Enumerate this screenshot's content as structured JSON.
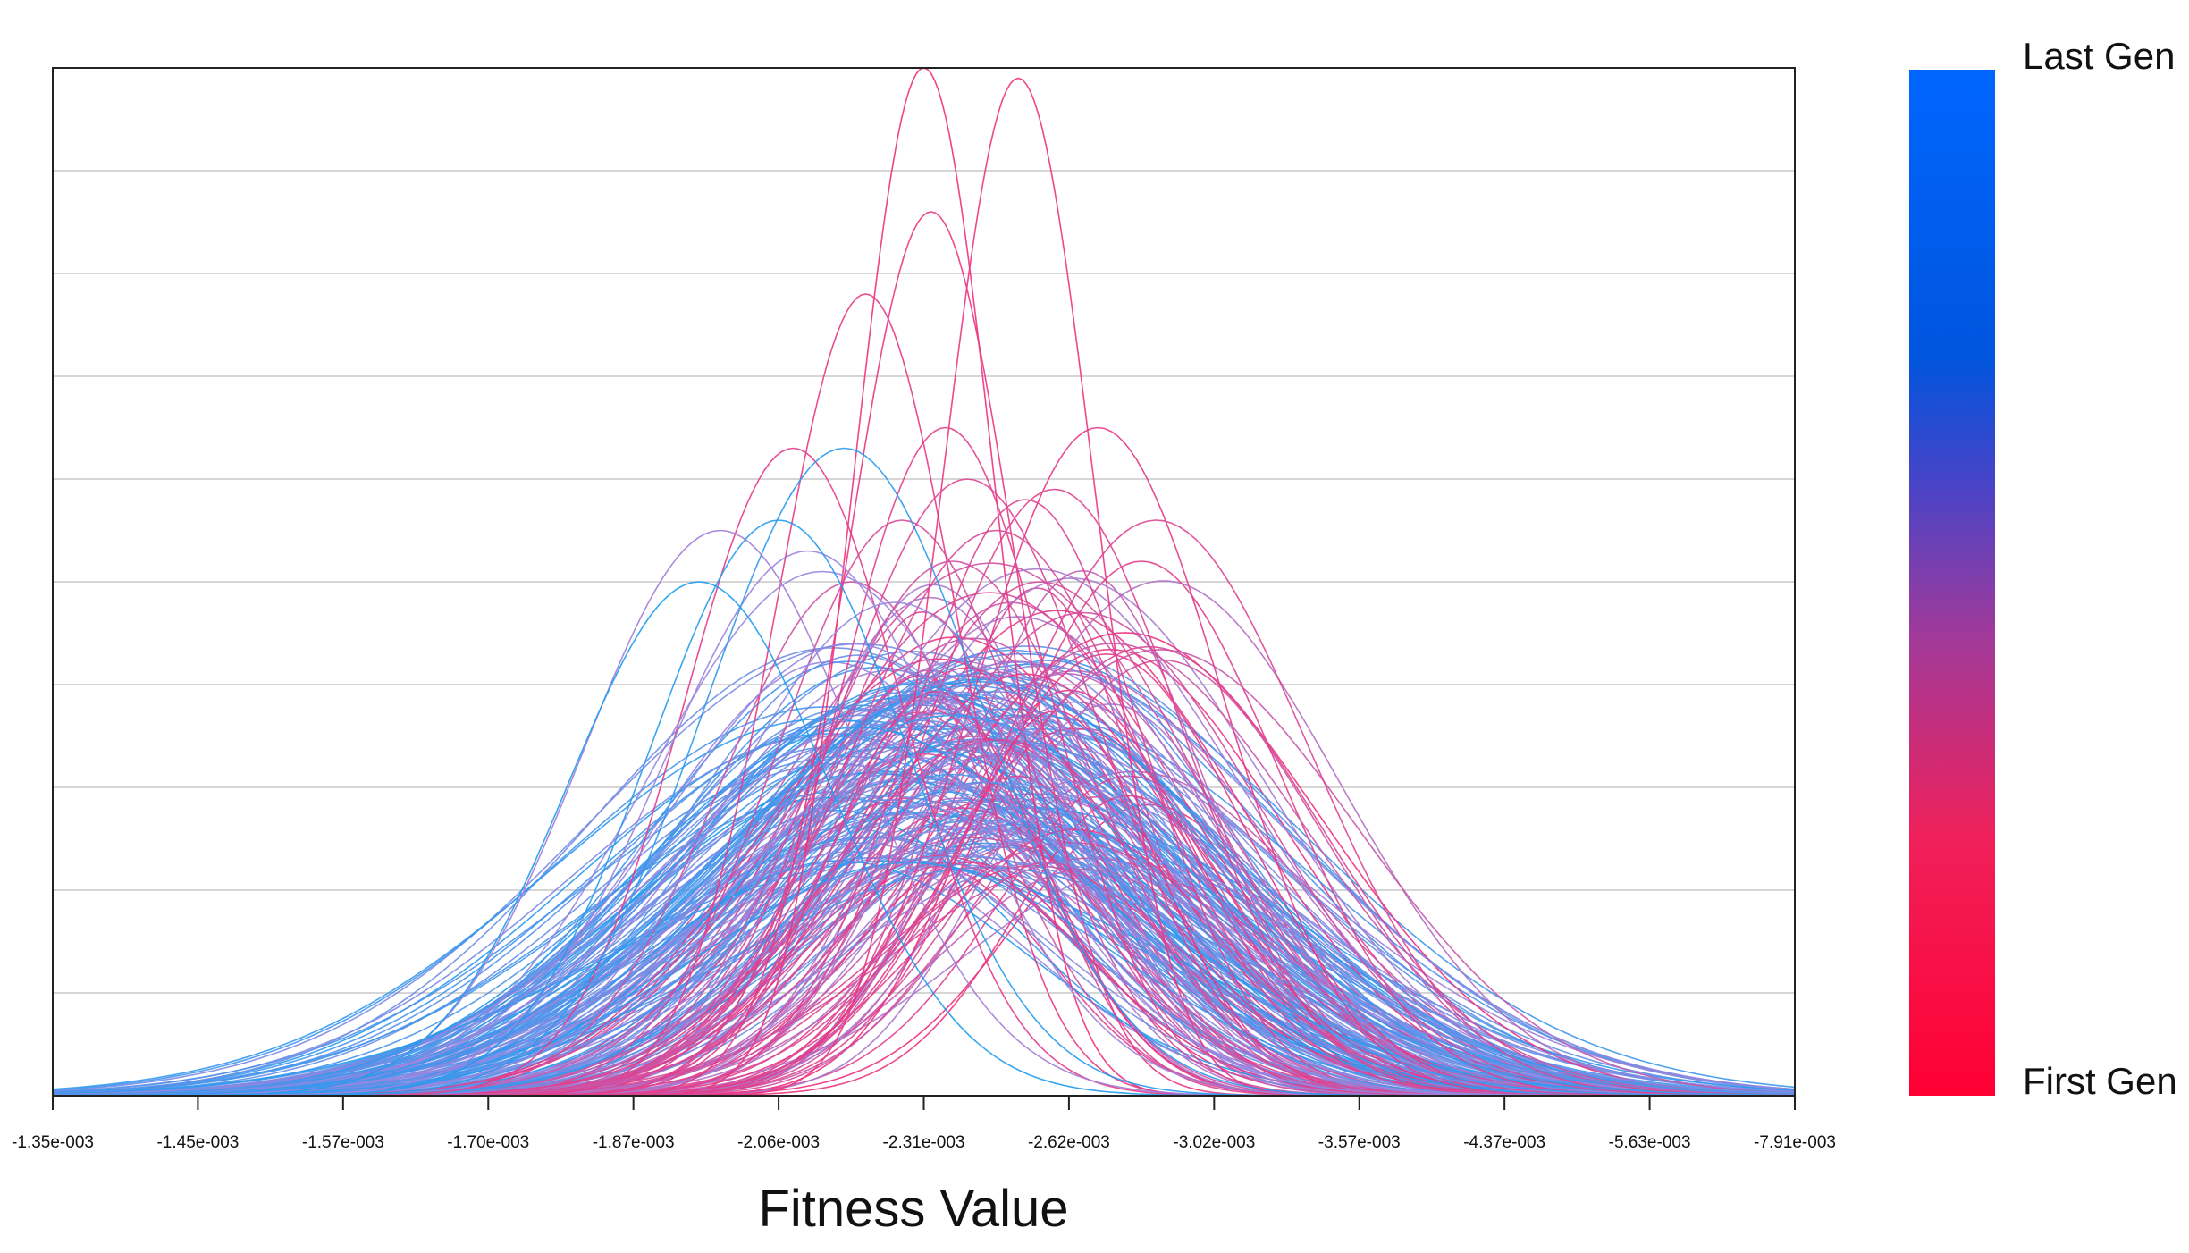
{
  "chart_data": {
    "type": "line",
    "title": "",
    "xlabel": "Fitness Value",
    "ylabel": "",
    "x_tick_labels": [
      "-1.35e-003",
      "-1.45e-003",
      "-1.57e-003",
      "-1.70e-003",
      "-1.87e-003",
      "-2.06e-003",
      "-2.31e-003",
      "-2.62e-003",
      "-3.02e-003",
      "-3.57e-003",
      "-4.37e-003",
      "-5.63e-003",
      "-7.91e-003"
    ],
    "y_gridlines": 10,
    "grid": true,
    "legend": {
      "type": "colorbar",
      "position": "right",
      "top_label": "Last Gen",
      "bottom_label": "First Gen",
      "top_color": "#0066ff",
      "mid_color": "#2d55d0",
      "bottom_color": "#ff0033"
    },
    "line_colors": {
      "first_gen": "#f0307a",
      "mid_gen": "#9a86e0",
      "last_gen": "#1f9cf0"
    },
    "series_summary": "Overlaid bell-shaped fitness distribution curves, one per generation, colored from First Gen (pink) to Last Gen (blue). Early generations are tall and narrow around -2.31e-003 to -2.62e-003; later generations are lower and wider, centred near -2.06e-003 to -2.31e-003.",
    "x_domain": [
      0,
      12
    ],
    "y_domain": [
      0,
      1
    ],
    "series": [
      {
        "name": "gen-peak-1",
        "generation": 0.0,
        "mu": 6.0,
        "sigma": 0.48,
        "peak": 1.0
      },
      {
        "name": "gen-peak-2",
        "generation": 0.02,
        "mu": 6.65,
        "sigma": 0.52,
        "peak": 0.99
      },
      {
        "name": "gen-peak-3",
        "generation": 0.03,
        "mu": 6.05,
        "sigma": 0.58,
        "peak": 0.86
      },
      {
        "name": "gen-peak-4",
        "generation": 0.05,
        "mu": 5.6,
        "sigma": 0.62,
        "peak": 0.78
      },
      {
        "name": "gen-peak-5",
        "generation": 0.06,
        "mu": 7.2,
        "sigma": 0.85,
        "peak": 0.65
      },
      {
        "name": "gen-peak-6",
        "generation": 0.07,
        "mu": 5.1,
        "sigma": 0.75,
        "peak": 0.63
      },
      {
        "name": "gen-peak-7",
        "generation": 0.08,
        "mu": 6.15,
        "sigma": 0.72,
        "peak": 0.65
      },
      {
        "name": "gen-peak-8",
        "generation": 0.09,
        "mu": 7.5,
        "sigma": 0.95,
        "peak": 0.52
      },
      {
        "name": "gen-peak-9",
        "generation": 0.1,
        "mu": 6.9,
        "sigma": 0.88,
        "peak": 0.59
      },
      {
        "name": "gen-peak-10",
        "generation": 0.11,
        "mu": 6.7,
        "sigma": 0.8,
        "peak": 0.58
      },
      {
        "name": "gen-peak-11",
        "generation": 0.12,
        "mu": 7.6,
        "sigma": 1.05,
        "peak": 0.56
      },
      {
        "name": "gen-peak-12",
        "generation": 0.13,
        "mu": 6.3,
        "sigma": 0.9,
        "peak": 0.6
      },
      {
        "name": "gen-peak-13",
        "generation": 0.14,
        "mu": 6.5,
        "sigma": 1.0,
        "peak": 0.55
      },
      {
        "name": "gen-peak-14",
        "generation": 0.15,
        "mu": 5.85,
        "sigma": 0.85,
        "peak": 0.56
      },
      {
        "name": "gen-peak-15",
        "generation": 0.16,
        "mu": 6.8,
        "sigma": 1.1,
        "peak": 0.5
      },
      {
        "name": "gen-peak-16",
        "generation": 0.17,
        "mu": 7.1,
        "sigma": 1.2,
        "peak": 0.47
      },
      {
        "name": "gen-peak-17",
        "generation": 0.18,
        "mu": 6.2,
        "sigma": 0.95,
        "peak": 0.52
      },
      {
        "name": "gen-peak-18",
        "generation": 0.19,
        "mu": 5.5,
        "sigma": 0.9,
        "peak": 0.5
      },
      {
        "name": "gen-peak-19",
        "generation": 0.2,
        "mu": 6.6,
        "sigma": 1.05,
        "peak": 0.48
      },
      {
        "name": "gen-peak-20",
        "generation": 0.22,
        "mu": 7.3,
        "sigma": 1.3,
        "peak": 0.44
      },
      {
        "name": "gen-mid-1",
        "generation": 0.45,
        "mu": 4.6,
        "sigma": 0.95,
        "peak": 0.55
      },
      {
        "name": "gen-mid-2",
        "generation": 0.48,
        "mu": 5.2,
        "sigma": 1.0,
        "peak": 0.53
      },
      {
        "name": "gen-mid-3",
        "generation": 0.5,
        "mu": 5.3,
        "sigma": 1.2,
        "peak": 0.51
      },
      {
        "name": "gen-mid-4",
        "generation": 0.52,
        "mu": 5.8,
        "sigma": 1.15,
        "peak": 0.48
      },
      {
        "name": "gen-mid-5",
        "generation": 0.55,
        "mu": 5.5,
        "sigma": 1.3,
        "peak": 0.44
      },
      {
        "name": "gen-last-1",
        "generation": 1.0,
        "mu": 4.45,
        "sigma": 0.9,
        "peak": 0.5
      },
      {
        "name": "gen-last-2",
        "generation": 0.97,
        "mu": 5.0,
        "sigma": 0.88,
        "peak": 0.56
      },
      {
        "name": "gen-last-3",
        "generation": 0.95,
        "mu": 5.45,
        "sigma": 0.95,
        "peak": 0.63
      },
      {
        "name": "gen-last-4",
        "generation": 0.9,
        "mu": 5.9,
        "sigma": 1.5,
        "peak": 0.4
      },
      {
        "name": "gen-last-5",
        "generation": 0.88,
        "mu": 6.2,
        "sigma": 1.6,
        "peak": 0.37
      }
    ]
  }
}
